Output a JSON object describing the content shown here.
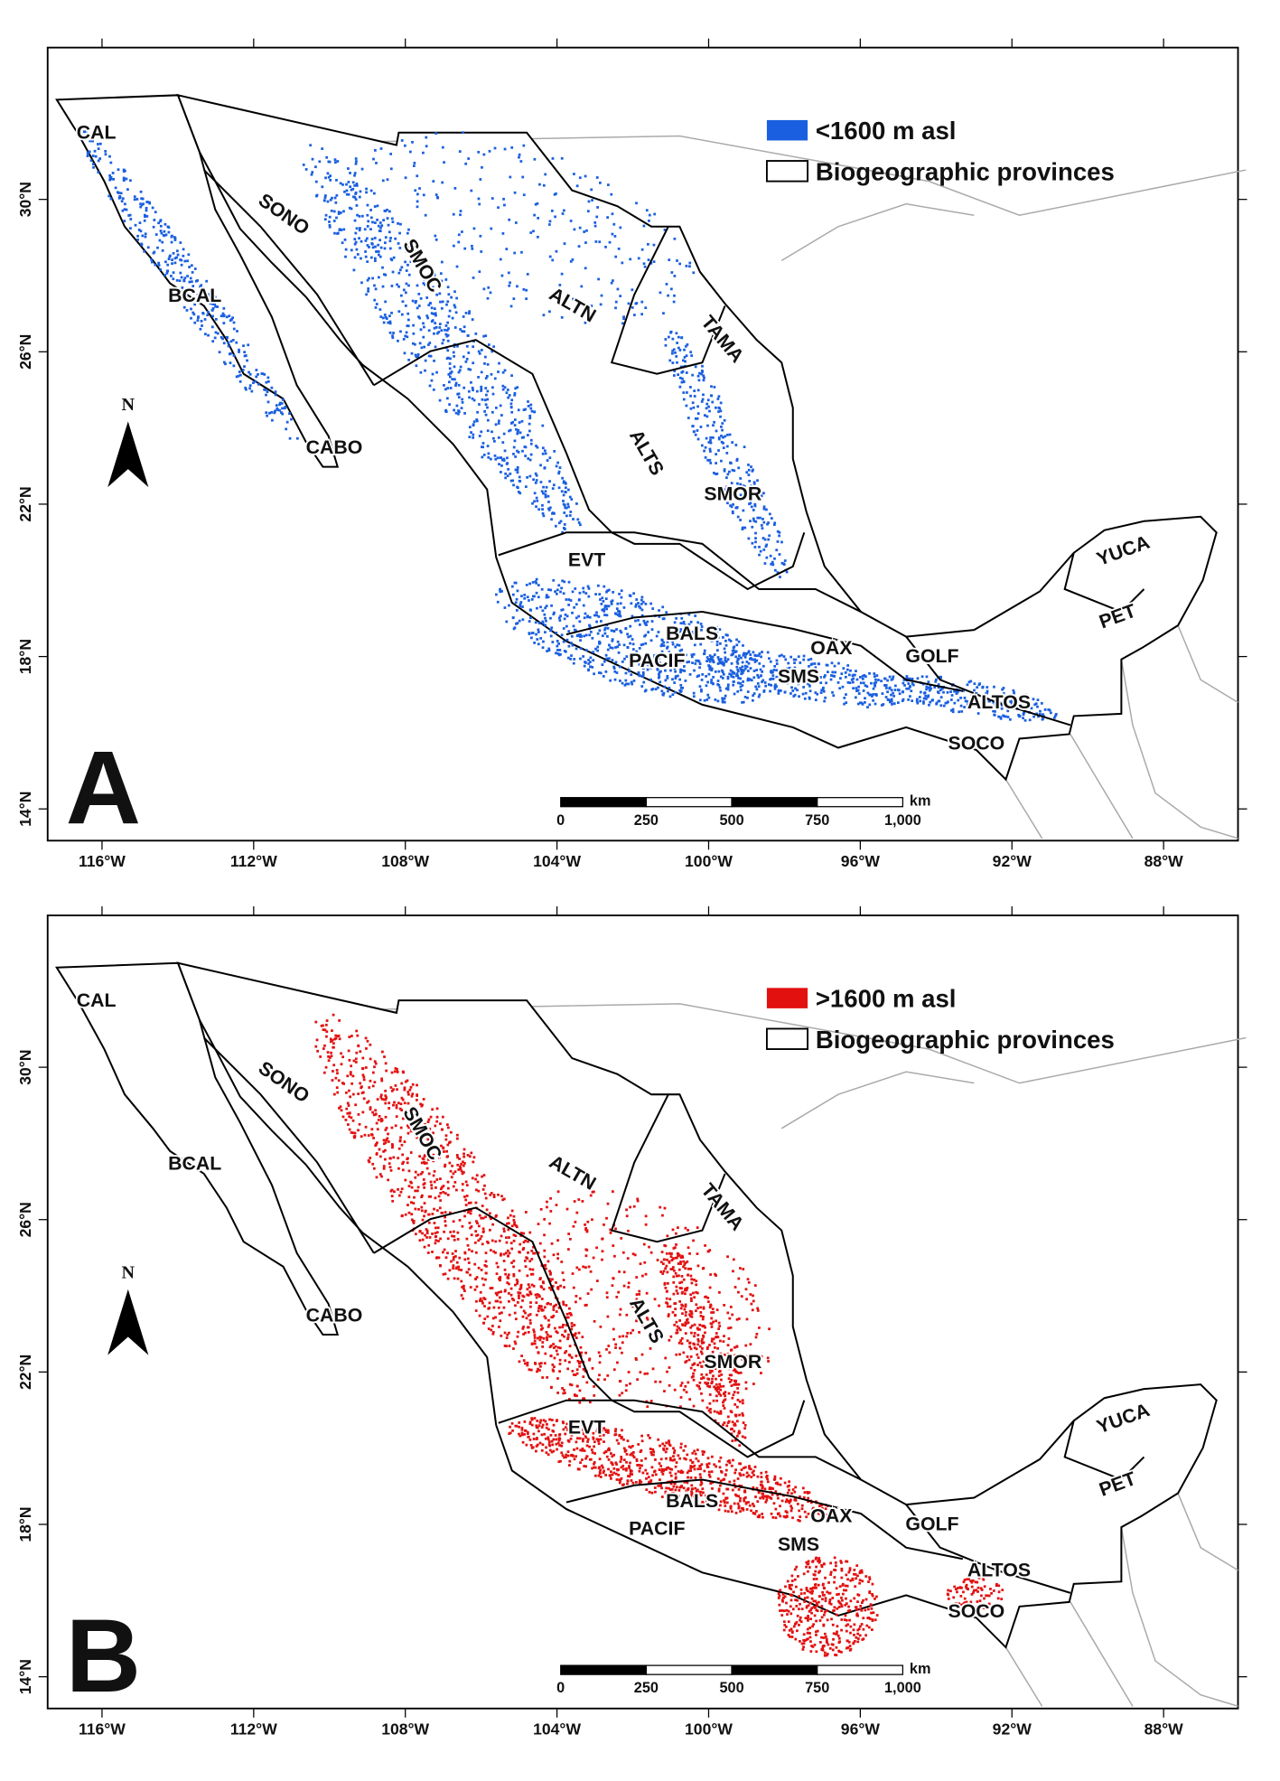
{
  "panels": [
    {
      "letter": "A",
      "legend": [
        {
          "label": "<1600 m asl",
          "color": "#1a5fe0"
        },
        {
          "label": "Biogeographic provinces"
        }
      ],
      "north": "N",
      "provinces": [
        "CAL",
        "SONO",
        "SMOC",
        "BCAL",
        "ALTN",
        "TAMA",
        "CABO",
        "ALTS",
        "SMOR",
        "EVT",
        "YUCA",
        "BALS",
        "PET",
        "OAX",
        "GOLF",
        "PACIF",
        "SMS",
        "ALTOS",
        "SOCO"
      ],
      "x_ticks": [
        "116°W",
        "112°W",
        "108°W",
        "104°W",
        "100°W",
        "96°W",
        "92°W",
        "88°W"
      ],
      "y_ticks": [
        "30°N",
        "26°N",
        "22°N",
        "18°N",
        "14°N"
      ],
      "scale_bar": {
        "labels": [
          "0",
          "250",
          "500",
          "750",
          "1,000"
        ],
        "unit": "km"
      }
    },
    {
      "letter": "B",
      "legend": [
        {
          "label": ">1600 m asl",
          "color": "#e31010"
        },
        {
          "label": "Biogeographic provinces"
        }
      ],
      "north": "N",
      "provinces": [
        "CAL",
        "SONO",
        "SMOC",
        "BCAL",
        "ALTN",
        "TAMA",
        "CABO",
        "ALTS",
        "SMOR",
        "EVT",
        "YUCA",
        "BALS",
        "PET",
        "OAX",
        "GOLF",
        "PACIF",
        "SMS",
        "ALTOS",
        "SOCO"
      ],
      "x_ticks": [
        "116°W",
        "112°W",
        "108°W",
        "104°W",
        "100°W",
        "96°W",
        "92°W",
        "88°W"
      ],
      "y_ticks": [
        "30°N",
        "26°N",
        "22°N",
        "18°N",
        "14°N"
      ],
      "scale_bar": {
        "labels": [
          "0",
          "250",
          "500",
          "750",
          "1,000"
        ],
        "unit": "km"
      }
    }
  ]
}
